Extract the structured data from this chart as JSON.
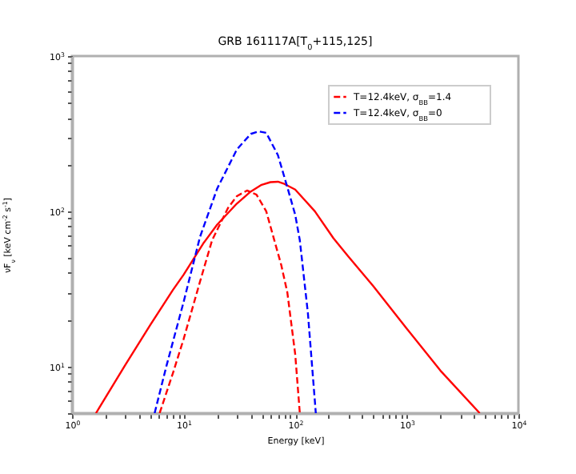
{
  "chart_data": {
    "type": "line",
    "title": "GRB 161117A[T$_{0}$+115,125]",
    "xlabel": "Energy [keV]",
    "ylabel": "νF$_{ν}$ [keV cm$^{-2}$ s$^{-1}$]",
    "log": "xy",
    "grid": false,
    "legend": "top right",
    "xlim": [
      1,
      10000
    ],
    "ylim": [
      5,
      1000
    ],
    "xticks": [
      {
        "value": 1,
        "label": "10$^{0}$"
      },
      {
        "value": 2,
        "label": null
      },
      {
        "value": 3,
        "label": null
      },
      {
        "value": 4,
        "label": null
      },
      {
        "value": 5,
        "label": null
      },
      {
        "value": 6,
        "label": null
      },
      {
        "value": 7,
        "label": null
      },
      {
        "value": 8,
        "label": null
      },
      {
        "value": 9,
        "label": null
      },
      {
        "value": 10,
        "label": "10$^{1}$"
      },
      {
        "value": 20,
        "label": null
      },
      {
        "value": 30,
        "label": null
      },
      {
        "value": 40,
        "label": null
      },
      {
        "value": 50,
        "label": null
      },
      {
        "value": 60,
        "label": null
      },
      {
        "value": 70,
        "label": null
      },
      {
        "value": 80,
        "label": null
      },
      {
        "value": 90,
        "label": null
      },
      {
        "value": 100,
        "label": "10$^{2}$"
      },
      {
        "value": 200,
        "label": null
      },
      {
        "value": 300,
        "label": null
      },
      {
        "value": 400,
        "label": null
      },
      {
        "value": 500,
        "label": null
      },
      {
        "value": 600,
        "label": null
      },
      {
        "value": 700,
        "label": null
      },
      {
        "value": 800,
        "label": null
      },
      {
        "value": 900,
        "label": null
      },
      {
        "value": 1000,
        "label": "10$^{3}$"
      },
      {
        "value": 2000,
        "label": null
      },
      {
        "value": 3000,
        "label": null
      },
      {
        "value": 4000,
        "label": null
      },
      {
        "value": 5000,
        "label": null
      },
      {
        "value": 6000,
        "label": null
      },
      {
        "value": 7000,
        "label": null
      },
      {
        "value": 8000,
        "label": null
      },
      {
        "value": 9000,
        "label": null
      },
      {
        "value": 10000,
        "label": "10$^{4}$"
      }
    ],
    "yticks": [
      {
        "value": 5,
        "label": null
      },
      {
        "value": 6,
        "label": null
      },
      {
        "value": 7,
        "label": null
      },
      {
        "value": 8,
        "label": null
      },
      {
        "value": 9,
        "label": null
      },
      {
        "value": 10,
        "label": "10$^{1}$"
      },
      {
        "value": 20,
        "label": null
      },
      {
        "value": 30,
        "label": null
      },
      {
        "value": 40,
        "label": null
      },
      {
        "value": 50,
        "label": null
      },
      {
        "value": 60,
        "label": null
      },
      {
        "value": 70,
        "label": null
      },
      {
        "value": 80,
        "label": null
      },
      {
        "value": 90,
        "label": null
      },
      {
        "value": 100,
        "label": "10$^{2}$"
      },
      {
        "value": 200,
        "label": null
      },
      {
        "value": 300,
        "label": null
      },
      {
        "value": 400,
        "label": null
      },
      {
        "value": 500,
        "label": null
      },
      {
        "value": 600,
        "label": null
      },
      {
        "value": 700,
        "label": null
      },
      {
        "value": 800,
        "label": null
      },
      {
        "value": 900,
        "label": null
      },
      {
        "value": 1000,
        "label": "10$^{3}$"
      }
    ],
    "series": [
      {
        "color": "#ff0000",
        "line_style": "solid",
        "x": [
          1.64,
          3,
          5,
          8,
          10,
          15,
          20,
          30,
          40,
          50,
          60,
          70,
          80,
          100,
          150,
          220,
          300,
          500,
          1000,
          2000,
          4500
        ],
        "values": [
          5,
          10.2,
          18.4,
          31,
          39,
          62,
          82,
          112,
          134,
          148,
          154,
          155,
          150,
          138,
          100,
          67,
          51,
          33,
          17.5,
          9.4,
          5
        ]
      },
      {
        "name": "T=12.4keV, σ$_{BB}$=1.4",
        "color": "#ff0000",
        "line_style": "dashed",
        "x": [
          6.1,
          8,
          10,
          14,
          18,
          25,
          30,
          37,
          45,
          55,
          65,
          75,
          85,
          100,
          110
        ],
        "values": [
          5,
          9,
          15,
          35,
          65,
          105,
          125,
          136,
          128,
          100,
          65,
          45,
          30,
          12,
          5
        ]
      },
      {
        "name": "T=12.4keV, σ$_{BB}$=0",
        "color": "#0000ff",
        "line_style": "dashed",
        "x": [
          5.5,
          7,
          10,
          14,
          20,
          30,
          40,
          47,
          55,
          70,
          85,
          100,
          110,
          130,
          153
        ],
        "values": [
          5,
          10,
          26,
          68,
          140,
          250,
          315,
          327,
          320,
          230,
          143,
          95,
          65,
          22,
          5
        ]
      }
    ]
  }
}
